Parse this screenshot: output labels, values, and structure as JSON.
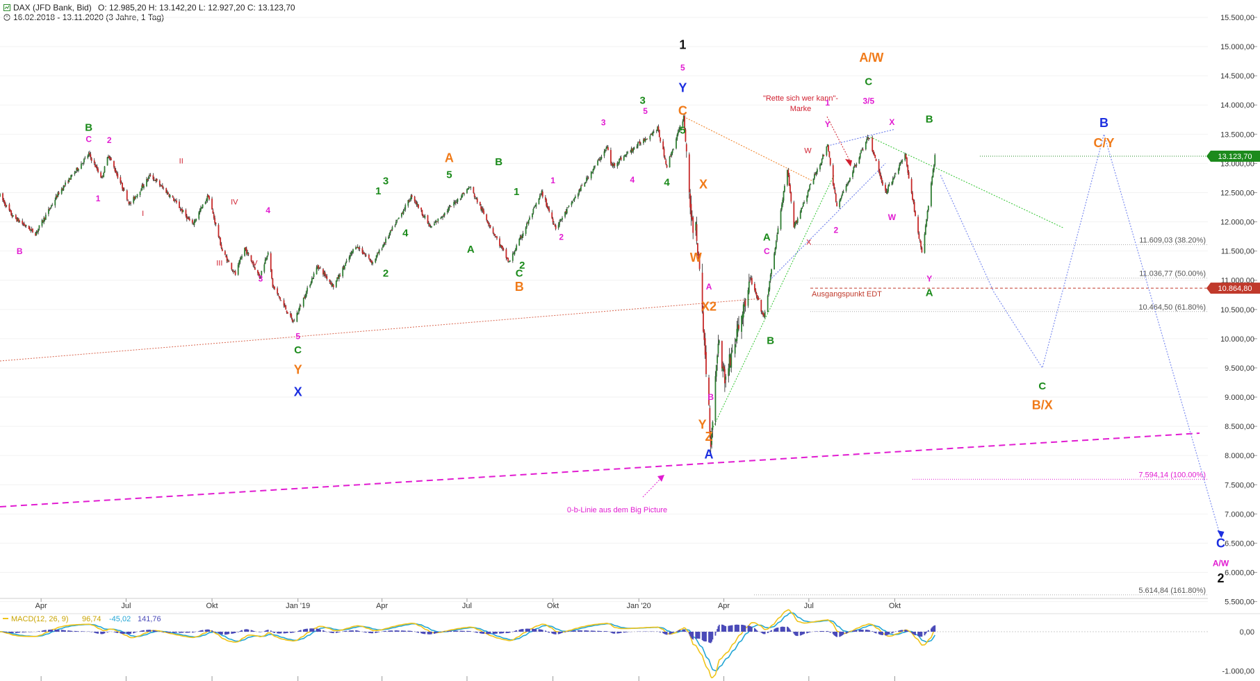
{
  "header": {
    "symbol_line": "DAX (JFD Bank, Bid)",
    "ohlc": "O: 12.985,20   H: 13.142,20   L: 12.927,20   C: 13.123,70",
    "range_line": "16.02.2018 - 13.11.2020   (3 Jahre, 1 Tag)"
  },
  "colors": {
    "up": "#2e8b2e",
    "down": "#c0392b",
    "green": "#1a8a1a",
    "magenta": "#e11bd1",
    "orange": "#f07b1a",
    "blue": "#1c2fe0",
    "black": "#111111",
    "red": "#d01f2f",
    "last_price_bg": "#1c8a1c",
    "level_bg": "#c0392b"
  },
  "chart_data": {
    "type": "candlestick",
    "instrument": "DAX (JFD Bank, Bid)",
    "period": "16.02.2018 - 13.11.2020",
    "interval": "1 Tag",
    "y_axis": {
      "side": "right",
      "range": [
        5500,
        15500
      ],
      "ticks": [
        "15.500,00",
        "15.000,00",
        "14.500,00",
        "14.000,00",
        "13.500,00",
        "13.000,00",
        "12.500,00",
        "12.000,00",
        "11.500,00",
        "11.000,00",
        "10.500,00",
        "10.000,00",
        "9.500,00",
        "9.000,00",
        "8.500,00",
        "8.000,00",
        "7.500,00",
        "7.000,00",
        "6.500,00",
        "6.000,00",
        "5.500,00"
      ]
    },
    "x_axis": {
      "ticks": [
        "Apr",
        "Jul",
        "Okt",
        "Jan '19",
        "Apr",
        "Jul",
        "Okt",
        "Jan '20",
        "Apr",
        "Jul",
        "Okt"
      ]
    },
    "price_path": [
      [
        "2018-02-16",
        12450
      ],
      [
        "2018-03-01",
        12100
      ],
      [
        "2018-03-26",
        11800
      ],
      [
        "2018-04-20",
        12500
      ],
      [
        "2018-05-22",
        13160
      ],
      [
        "2018-06-05",
        12750
      ],
      [
        "2018-06-12",
        13150
      ],
      [
        "2018-07-05",
        12300
      ],
      [
        "2018-07-27",
        12800
      ],
      [
        "2018-08-20",
        12400
      ],
      [
        "2018-09-10",
        11950
      ],
      [
        "2018-09-27",
        12450
      ],
      [
        "2018-10-12",
        11500
      ],
      [
        "2018-10-26",
        11100
      ],
      [
        "2018-11-05",
        11550
      ],
      [
        "2018-11-21",
        11050
      ],
      [
        "2018-11-30",
        11500
      ],
      [
        "2018-12-05",
        10900
      ],
      [
        "2018-12-27",
        10280
      ],
      [
        "2019-01-22",
        11250
      ],
      [
        "2019-02-08",
        10900
      ],
      [
        "2019-03-04",
        11600
      ],
      [
        "2019-03-22",
        11300
      ],
      [
        "2019-05-03",
        12450
      ],
      [
        "2019-05-23",
        11900
      ],
      [
        "2019-07-04",
        12600
      ],
      [
        "2019-08-15",
        11300
      ],
      [
        "2019-09-19",
        12500
      ],
      [
        "2019-10-04",
        11900
      ],
      [
        "2019-11-28",
        13280
      ],
      [
        "2019-12-03",
        12950
      ],
      [
        "2020-01-21",
        13600
      ],
      [
        "2020-01-31",
        12950
      ],
      [
        "2020-02-18",
        13800
      ],
      [
        "2020-02-28",
        11700
      ],
      [
        "2020-03-02",
        12000
      ],
      [
        "2020-03-16",
        8800
      ],
      [
        "2020-03-18",
        8200
      ],
      [
        "2020-03-26",
        10000
      ],
      [
        "2020-04-02",
        9300
      ],
      [
        "2020-04-30",
        11000
      ],
      [
        "2020-05-14",
        10350
      ],
      [
        "2020-06-08",
        12900
      ],
      [
        "2020-06-15",
        11900
      ],
      [
        "2020-07-02",
        12600
      ],
      [
        "2020-07-21",
        13300
      ],
      [
        "2020-07-31",
        12250
      ],
      [
        "2020-08-26",
        13200
      ],
      [
        "2020-09-03",
        13450
      ],
      [
        "2020-09-21",
        12500
      ],
      [
        "2020-10-12",
        13150
      ],
      [
        "2020-10-30",
        11450
      ],
      [
        "2020-11-13",
        13124
      ]
    ],
    "projection": [
      [
        "2020-11-19",
        12800
      ],
      [
        "2021-01-15",
        10800
      ],
      [
        "2021-03-08",
        9500
      ],
      [
        "2021-05-13",
        13500
      ],
      [
        "2021-09-15",
        6600
      ]
    ],
    "levels": [
      {
        "value": 11609.03,
        "label": "11.609,03 (38.20%)"
      },
      {
        "value": 11036.77,
        "label": "11.036,77 (50.00%)"
      },
      {
        "value": 10464.5,
        "label": "10.464,50 (61.80%)"
      },
      {
        "value": 7594.14,
        "label": "7.594,14 (100.00%)"
      },
      {
        "value": 5614.84,
        "label": "5.614,84 (161.80%)"
      }
    ],
    "last_price": "13.123,70",
    "ausgangspunkt_level": "10.864,80",
    "ausgangspunkt_text": "Ausgangspunkt EDT",
    "annotation_rette": [
      "\"Rette sich wer kann\"-",
      "Marke"
    ],
    "annotation_0b": "0-b-Linie aus dem Big Picture",
    "macd": {
      "label": "MACD(12, 26, 9)",
      "values": [
        "96,74",
        "-45,02",
        "141,76"
      ],
      "ticks": [
        "0,00",
        "-1.000,00"
      ],
      "value_range": [
        -1450,
        500
      ]
    },
    "wave_labels": [
      [
        "2018-05-22",
        13560,
        "B",
        "green"
      ],
      [
        "2018-05-22",
        13370,
        "C",
        "magenta"
      ],
      [
        "2018-06-13",
        13350,
        "2",
        "magenta"
      ],
      [
        "2018-06-01",
        12350,
        "1",
        "magenta"
      ],
      [
        "2018-03-09",
        11450,
        "B",
        "magenta"
      ],
      [
        "2018-07-19",
        12100,
        "I",
        "red"
      ],
      [
        "2018-08-29",
        13000,
        "II",
        "red"
      ],
      [
        "2018-10-09",
        11250,
        "III",
        "red"
      ],
      [
        "2018-10-25",
        12300,
        "IV",
        "red"
      ],
      [
        "2018-11-16",
        11250,
        "V",
        "red"
      ],
      [
        "2018-11-30",
        12150,
        "4",
        "magenta"
      ],
      [
        "2018-11-22",
        10980,
        "3",
        "magenta"
      ],
      [
        "2019-01-01",
        9990,
        "5",
        "magenta"
      ],
      [
        "2019-01-01",
        9750,
        "C",
        "green"
      ],
      [
        "2019-01-01",
        9400,
        "Y",
        "orange"
      ],
      [
        "2019-01-01",
        9020,
        "X",
        "blue"
      ],
      [
        "2019-04-05",
        11060,
        "2",
        "green"
      ],
      [
        "2019-03-28",
        12470,
        "1",
        "green"
      ],
      [
        "2019-04-05",
        12640,
        "3",
        "green"
      ],
      [
        "2019-04-26",
        11750,
        "4",
        "green"
      ],
      [
        "2019-06-12",
        12750,
        "5",
        "green"
      ],
      [
        "2019-06-12",
        13020,
        "A",
        "orange"
      ],
      [
        "2019-07-05",
        11470,
        "A",
        "green"
      ],
      [
        "2019-08-04",
        12970,
        "B",
        "green"
      ],
      [
        "2019-08-26",
        11060,
        "C",
        "green"
      ],
      [
        "2019-08-26",
        10820,
        "B",
        "orange"
      ],
      [
        "2019-08-29",
        11200,
        "2",
        "green"
      ],
      [
        "2019-08-23",
        12460,
        "1",
        "green"
      ],
      [
        "2019-10-01",
        12660,
        "1",
        "magenta"
      ],
      [
        "2019-10-10",
        11690,
        "2",
        "magenta"
      ],
      [
        "2019-11-24",
        13650,
        "3",
        "magenta"
      ],
      [
        "2019-12-25",
        12670,
        "4",
        "magenta"
      ],
      [
        "2020-01-08",
        13850,
        "5",
        "magenta"
      ],
      [
        "2020-01-05",
        14020,
        "3",
        "green"
      ],
      [
        "2020-01-31",
        12620,
        "4",
        "green"
      ],
      [
        "2020-02-17",
        14960,
        "1",
        "black"
      ],
      [
        "2020-02-17",
        14590,
        "5",
        "magenta"
      ],
      [
        "2020-02-17",
        14220,
        "Y",
        "blue"
      ],
      [
        "2020-02-17",
        13830,
        "C",
        "orange"
      ],
      [
        "2020-02-17",
        13510,
        "5",
        "green"
      ],
      [
        "2020-03-10",
        12570,
        "X",
        "orange"
      ],
      [
        "2020-03-02",
        11320,
        "W",
        "orange"
      ],
      [
        "2020-03-16",
        10840,
        "A",
        "magenta"
      ],
      [
        "2020-03-16",
        10480,
        "X2",
        "orange"
      ],
      [
        "2020-03-18",
        8950,
        "B",
        "magenta"
      ],
      [
        "2020-03-09",
        8460,
        "Y",
        "orange"
      ],
      [
        "2020-03-16",
        8250,
        "Z",
        "orange"
      ],
      [
        "2020-03-16",
        7950,
        "A",
        "blue"
      ],
      [
        "2020-05-17",
        11680,
        "A",
        "green"
      ],
      [
        "2020-05-17",
        11450,
        "C",
        "magenta"
      ],
      [
        "2020-05-21",
        9910,
        "B",
        "green"
      ],
      [
        "2020-06-30",
        13180,
        "W",
        "red"
      ],
      [
        "2020-07-01",
        11610,
        "X",
        "red"
      ],
      [
        "2020-07-21",
        13620,
        "Y",
        "magenta"
      ],
      [
        "2020-07-21",
        13990,
        "1",
        "magenta"
      ],
      [
        "2020-07-30",
        11810,
        "2",
        "magenta"
      ],
      [
        "2020-09-03",
        14340,
        "C",
        "green"
      ],
      [
        "2020-09-03",
        14020,
        "3/5",
        "magenta"
      ],
      [
        "2020-09-06",
        14740,
        "A/W",
        "orange"
      ],
      [
        "2020-09-28",
        13660,
        "X",
        "magenta"
      ],
      [
        "2020-09-28",
        12030,
        "W",
        "magenta"
      ],
      [
        "2020-11-07",
        13700,
        "B",
        "green"
      ],
      [
        "2020-11-07",
        10980,
        "Y",
        "magenta"
      ],
      [
        "2020-11-07",
        10730,
        "A",
        "green"
      ],
      [
        "2021-03-08",
        9130,
        "C",
        "green"
      ],
      [
        "2021-03-08",
        8790,
        "B/X",
        "orange"
      ],
      [
        "2021-05-13",
        13620,
        "B",
        "blue"
      ],
      [
        "2021-05-13",
        13280,
        "C/Y",
        "orange"
      ],
      [
        "2021-09-15",
        6430,
        "C",
        "blue"
      ],
      [
        "2021-09-15",
        6110,
        "A/W",
        "magenta"
      ],
      [
        "2021-09-15",
        5830,
        "2",
        "black"
      ]
    ]
  }
}
